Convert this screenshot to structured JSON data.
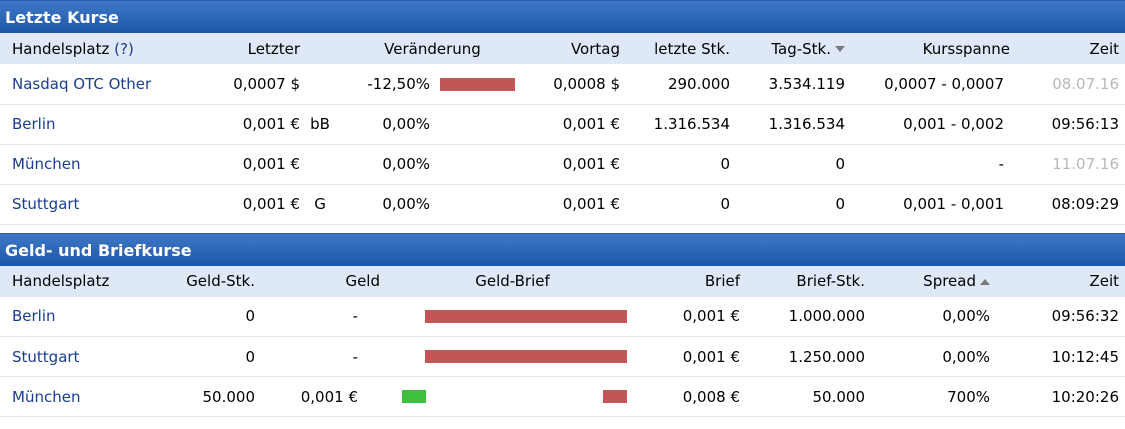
{
  "last_prices": {
    "title": "Letzte Kurse",
    "headers": {
      "venue": "Handelsplatz",
      "help": "(?)",
      "last": "Letzter",
      "change": "Veränderung",
      "prev": "Vortag",
      "last_qty": "letzte Stk.",
      "day_qty": "Tag-Stk.",
      "range": "Kursspanne",
      "time": "Zeit"
    },
    "rows": [
      {
        "venue": "Nasdaq OTC Other",
        "last": "0,0007 $",
        "flag": "",
        "change": "-12,50%",
        "change_pct": -12.5,
        "prev": "0,0008 $",
        "last_qty": "290.000",
        "day_qty": "3.534.119",
        "range": "0,0007 - 0,0007",
        "time": "08.07.16"
      },
      {
        "venue": "Berlin",
        "last": "0,001 €",
        "flag": "bB",
        "change": "0,00%",
        "change_pct": 0,
        "prev": "0,001 €",
        "last_qty": "1.316.534",
        "day_qty": "1.316.534",
        "range": "0,001 - 0,002",
        "time": "09:56:13"
      },
      {
        "venue": "München",
        "last": "0,001 €",
        "flag": "",
        "change": "0,00%",
        "change_pct": 0,
        "prev": "0,001 €",
        "last_qty": "0",
        "day_qty": "0",
        "range": "-",
        "time": "11.07.16"
      },
      {
        "venue": "Stuttgart",
        "last": "0,001 €",
        "flag": "G",
        "change": "0,00%",
        "change_pct": 0,
        "prev": "0,001 €",
        "last_qty": "0",
        "day_qty": "0",
        "range": "0,001 - 0,001",
        "time": "08:09:29"
      }
    ]
  },
  "bid_ask": {
    "title": "Geld- und Briefkurse",
    "headers": {
      "venue": "Handelsplatz",
      "bid_qty": "Geld-Stk.",
      "bid": "Geld",
      "bid_ask": "Geld-Brief",
      "ask": "Brief",
      "ask_qty": "Brief-Stk.",
      "spread": "Spread",
      "time": "Zeit"
    },
    "rows": [
      {
        "venue": "Berlin",
        "bid_qty": "0",
        "bid": "-",
        "ask": "0,001 €",
        "ask_qty": "1.000.000",
        "spread": "0,00%",
        "time": "09:56:32",
        "bid_bar": 0,
        "ask_bar": 1.0
      },
      {
        "venue": "Stuttgart",
        "bid_qty": "0",
        "bid": "-",
        "ask": "0,001 €",
        "ask_qty": "1.250.000",
        "spread": "0,00%",
        "time": "10:12:45",
        "bid_bar": 0,
        "ask_bar": 1.0
      },
      {
        "venue": "München",
        "bid_qty": "50.000",
        "bid": "0,001 €",
        "ask": "0,008 €",
        "ask_qty": "50.000",
        "spread": "700%",
        "time": "10:20:26",
        "bid_bar": 0.12,
        "ask_bar": 0.12
      }
    ]
  },
  "colors": {
    "header_blue": "#1e56a8",
    "link": "#1a3d8f",
    "bar_red": "#c45555",
    "bar_green": "#3fbf3f"
  }
}
